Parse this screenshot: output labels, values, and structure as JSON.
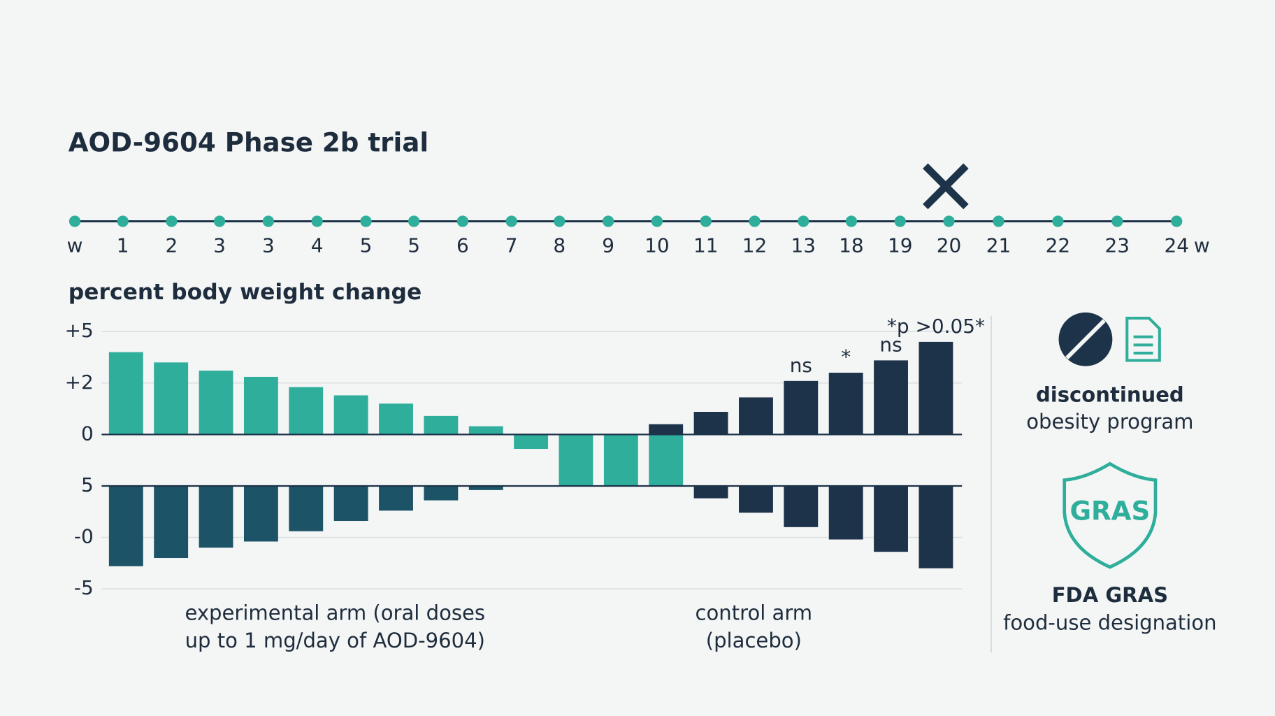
{
  "chart_data": {
    "type": "bar",
    "title": "AOD-9604 Phase 2b trial",
    "timeline": {
      "labels": [
        "w",
        "1",
        "2",
        "3",
        "3",
        "4",
        "5",
        "5",
        "6",
        "7",
        "8",
        "9",
        "10",
        "11",
        "12",
        "13",
        "18",
        "19",
        "20",
        "21",
        "22",
        "23",
        "24"
      ],
      "end_label": "w"
    },
    "y_label": "percent body weight change",
    "ylim": [
      -7.5,
      5
    ],
    "yticks": [
      {
        "value": 5,
        "label": "+5"
      },
      {
        "value": 2.5,
        "label": "+2"
      },
      0,
      {
        "value": -2.5,
        "label": "5"
      },
      {
        "value": -5,
        "label": "-0"
      },
      {
        "value": -7.5,
        "label": "-5"
      }
    ],
    "grid": true,
    "lower_base": -2.5,
    "series": [
      {
        "color": "#2eae9b",
        "values": [
          4.0,
          3.5,
          3.1,
          2.8,
          2.3,
          1.9,
          1.5,
          0.9,
          0.4,
          -0.7,
          -2.5,
          -2.5,
          -2.5,
          null,
          null,
          null,
          null,
          null,
          null
        ]
      },
      {
        "color": "#1c3349",
        "values": [
          null,
          null,
          null,
          null,
          null,
          null,
          null,
          null,
          null,
          null,
          null,
          null,
          0.5,
          1.1,
          1.8,
          2.6,
          3.0,
          3.6,
          4.5
        ]
      },
      {
        "color": "#1d5366",
        "lower": true,
        "values": [
          -3.9,
          -3.5,
          -3.0,
          -2.7,
          -2.2,
          -1.7,
          -1.2,
          -0.7,
          -0.2,
          null,
          null,
          null,
          null,
          null,
          null,
          null,
          null,
          null,
          null
        ]
      },
      {
        "color": "#1c3349",
        "lower": true,
        "values": [
          null,
          null,
          null,
          null,
          null,
          null,
          null,
          null,
          null,
          null,
          null,
          null,
          null,
          -0.6,
          -1.3,
          -2.0,
          -2.6,
          -3.2,
          -4.0
        ]
      }
    ],
    "bar_labels": [
      null,
      null,
      null,
      null,
      null,
      null,
      null,
      null,
      null,
      null,
      null,
      null,
      null,
      null,
      null,
      "ns",
      "*",
      "ns",
      "*p >0.05*"
    ],
    "groups": [
      {
        "lines": [
          "experimental arm (oral doses",
          "up to 1 mg/day of AOD-9604)"
        ]
      },
      {
        "lines": [
          "control arm",
          "(placebo)"
        ]
      }
    ]
  },
  "side_panel": {
    "status": {
      "title": "discontinued",
      "subtitle": "obesity program"
    },
    "badge": "GRAS",
    "designation": {
      "title": "FDA GRAS",
      "subtitle": "food-use designation"
    }
  }
}
